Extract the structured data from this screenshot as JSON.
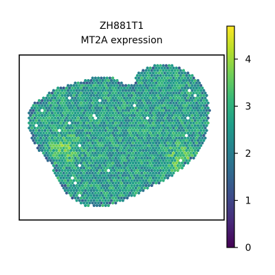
{
  "chart_data": {
    "type": "scatter",
    "title": "ZH881T1",
    "subtitle": "MT2A expression",
    "xlabel": "",
    "ylabel": "",
    "grid": false,
    "axis_ticks_visible": false,
    "colormap": "viridis",
    "colorbar": {
      "range": [
        0,
        4.7
      ],
      "ticks": [
        0,
        1,
        2,
        3,
        4
      ],
      "tick_labels": [
        "0",
        "1",
        "2",
        "3",
        "4"
      ],
      "placement": "right"
    },
    "series": [
      {
        "value_distribution": {
          "typical_range": [
            1.8,
            3.6
          ],
          "mean_estimate": 2.6,
          "high_value_clusters": [
            {
              "region": "left-center",
              "approx_value": 3.8
            },
            {
              "region": "right-center",
              "approx_value": 3.7
            }
          ],
          "low_value_edges": {
            "approx_value": 1.2
          }
        }
      }
    ]
  },
  "colors": {
    "viridis_stops": [
      "#440154",
      "#482878",
      "#3e4989",
      "#31688e",
      "#26828e",
      "#1f9e89",
      "#35b779",
      "#6ece58",
      "#b5de2b",
      "#fde725"
    ],
    "axes_frame": "#000000",
    "missing_spot": "#ffffff"
  }
}
